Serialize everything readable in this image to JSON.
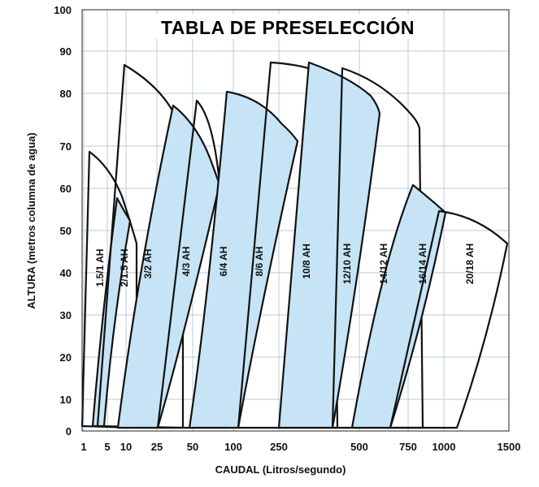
{
  "chart_data": {
    "type": "area",
    "title": "TABLA DE PRESELECCIÓN",
    "xlabel": "CAUDAL (Litros/segundo)",
    "ylabel": "ALTURA (metros columna de agua)",
    "x_ticks": [
      "1",
      "5",
      "10",
      "25",
      "50",
      "100",
      "250",
      "500",
      "750",
      "1000",
      "1500"
    ],
    "y_ticks": [
      0,
      10,
      20,
      30,
      40,
      50,
      60,
      70,
      80,
      90,
      100
    ],
    "ylim": [
      0,
      100
    ],
    "grid": true,
    "fill_color": "#c6e4f5",
    "line_color": "#111111",
    "grid_color": "#b8cbd8",
    "series": [
      {
        "name": "1.5/1 AH"
      },
      {
        "name": "2/1.5 AH"
      },
      {
        "name": "3/2 AH"
      },
      {
        "name": "4/3 AH"
      },
      {
        "name": "6/4 AH"
      },
      {
        "name": "8/6 AH"
      },
      {
        "name": "10/8 AH"
      },
      {
        "name": "12/10 AH"
      },
      {
        "name": "14/12 AH"
      },
      {
        "name": "16/14 AH"
      },
      {
        "name": "20/18 AH"
      }
    ]
  }
}
